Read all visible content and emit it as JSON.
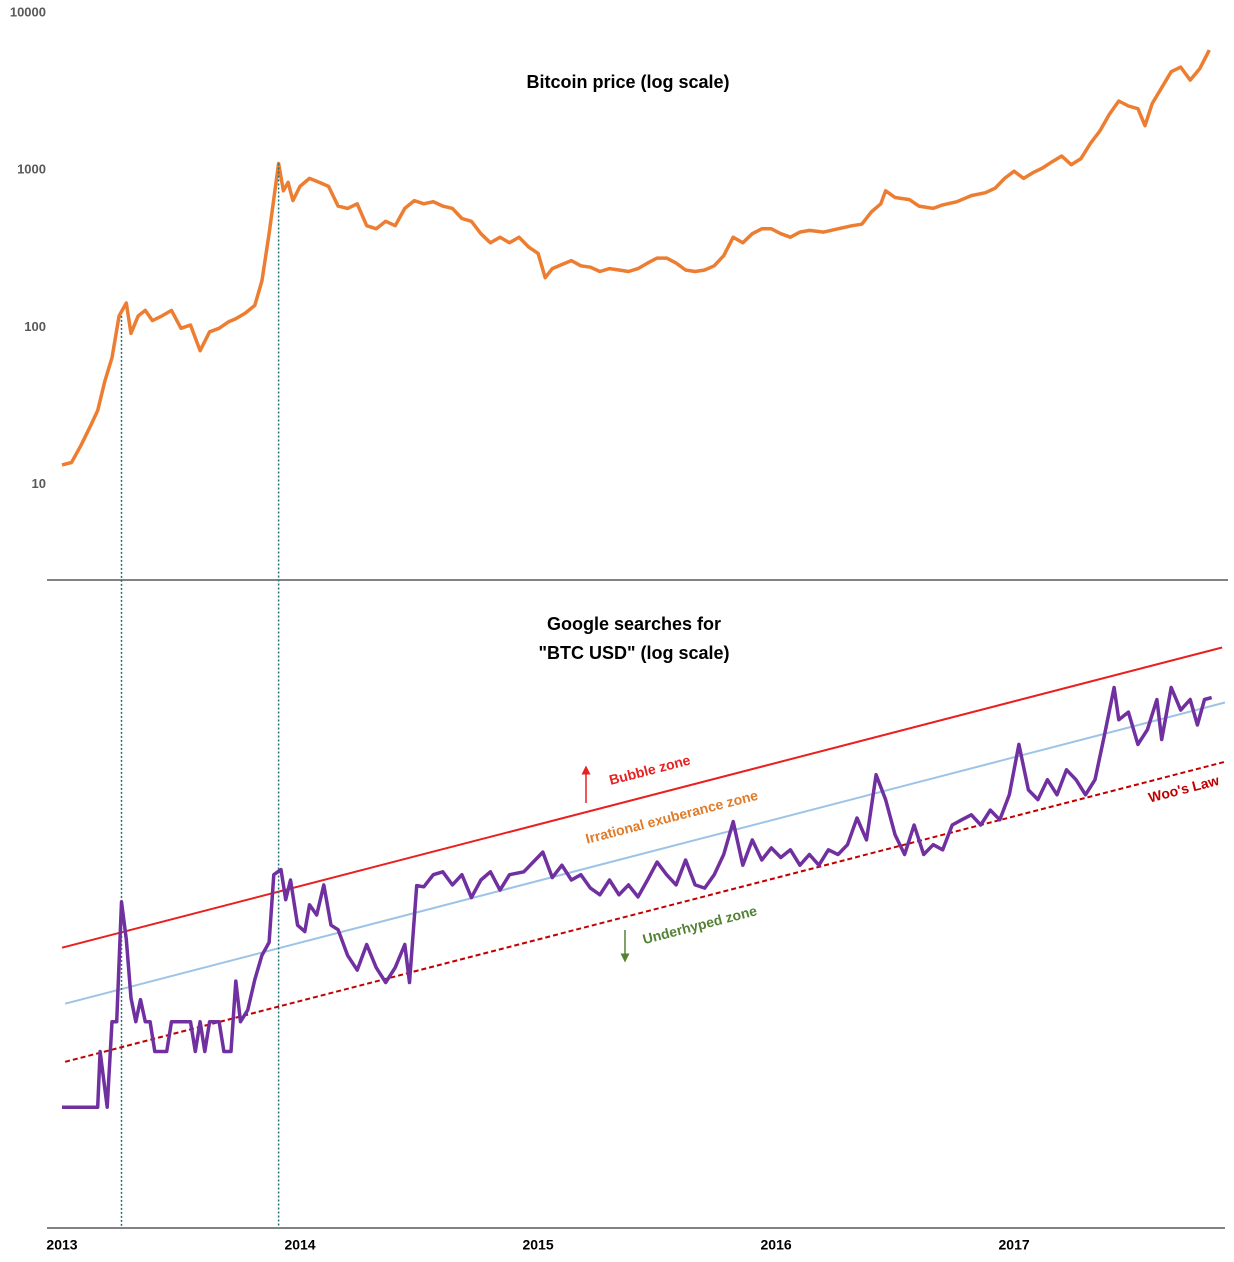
{
  "chart_data": [
    {
      "type": "line",
      "title": "Bitcoin price (log scale)",
      "log_scale": true,
      "xlim": [
        2012.937,
        2017.886
      ],
      "ylim": [
        2.5,
        12300
      ],
      "yticks": [
        10,
        100,
        1000,
        10000
      ],
      "x": [
        2013.0,
        2013.04,
        2013.08,
        2013.12,
        2013.15,
        2013.18,
        2013.21,
        2013.24,
        2013.27,
        2013.29,
        2013.32,
        2013.35,
        2013.38,
        2013.42,
        2013.46,
        2013.5,
        2013.54,
        2013.58,
        2013.62,
        2013.66,
        2013.7,
        2013.73,
        2013.77,
        2013.81,
        2013.84,
        2013.87,
        2013.91,
        2013.93,
        2013.95,
        2013.97,
        2014.0,
        2014.04,
        2014.08,
        2014.12,
        2014.16,
        2014.2,
        2014.24,
        2014.28,
        2014.32,
        2014.36,
        2014.4,
        2014.44,
        2014.48,
        2014.52,
        2014.56,
        2014.6,
        2014.64,
        2014.68,
        2014.72,
        2014.76,
        2014.8,
        2014.84,
        2014.88,
        2014.92,
        2014.96,
        2015.0,
        2015.03,
        2015.06,
        2015.1,
        2015.14,
        2015.18,
        2015.22,
        2015.26,
        2015.3,
        2015.34,
        2015.38,
        2015.42,
        2015.46,
        2015.5,
        2015.54,
        2015.58,
        2015.62,
        2015.66,
        2015.7,
        2015.74,
        2015.78,
        2015.82,
        2015.86,
        2015.9,
        2015.94,
        2015.98,
        2016.02,
        2016.06,
        2016.1,
        2016.14,
        2016.2,
        2016.26,
        2016.32,
        2016.36,
        2016.4,
        2016.44,
        2016.46,
        2016.5,
        2016.56,
        2016.6,
        2016.66,
        2016.7,
        2016.76,
        2016.82,
        2016.88,
        2016.92,
        2016.96,
        2017.0,
        2017.04,
        2017.08,
        2017.12,
        2017.16,
        2017.2,
        2017.24,
        2017.28,
        2017.32,
        2017.36,
        2017.4,
        2017.44,
        2017.48,
        2017.52,
        2017.55,
        2017.58,
        2017.62,
        2017.66,
        2017.7,
        2017.74,
        2017.78,
        2017.82
      ],
      "series": [
        {
          "color": "#ed7d31",
          "values": [
            13.5,
            14,
            18,
            24,
            30,
            46,
            65,
            120,
            145,
            93,
            120,
            130,
            112,
            120,
            130,
            100,
            105,
            72,
            95,
            100,
            110,
            115,
            125,
            140,
            200,
            400,
            1120,
            750,
            850,
            650,
            800,
            900,
            850,
            800,
            600,
            580,
            620,
            450,
            430,
            480,
            450,
            580,
            650,
            620,
            640,
            600,
            580,
            500,
            480,
            400,
            350,
            380,
            350,
            380,
            330,
            300,
            210,
            240,
            255,
            270,
            250,
            245,
            230,
            240,
            235,
            230,
            240,
            260,
            280,
            280,
            260,
            235,
            230,
            235,
            250,
            290,
            380,
            350,
            400,
            430,
            430,
            400,
            380,
            410,
            420,
            410,
            430,
            450,
            460,
            550,
            620,
            750,
            680,
            660,
            600,
            580,
            610,
            640,
            700,
            730,
            780,
            900,
            1000,
            900,
            980,
            1050,
            1150,
            1250,
            1100,
            1200,
            1500,
            1800,
            2300,
            2800,
            2600,
            2500,
            1950,
            2700,
            3400,
            4300,
            4600,
            3800,
            4500,
            5900
          ]
        }
      ]
    },
    {
      "type": "line",
      "title": [
        "Google searches for",
        "\"BTC USD\" (log scale)"
      ],
      "log_scale": true,
      "xlim": [
        2012.937,
        2017.886
      ],
      "ylim": [
        1,
        250
      ],
      "xticks": [
        2013,
        2014,
        2015,
        2016,
        2017
      ],
      "x": [
        2013.0,
        2013.15,
        2013.16,
        2013.19,
        2013.21,
        2013.23,
        2013.25,
        2013.27,
        2013.29,
        2013.31,
        2013.33,
        2013.35,
        2013.37,
        2013.39,
        2013.44,
        2013.46,
        2013.54,
        2013.56,
        2013.58,
        2013.6,
        2013.62,
        2013.66,
        2013.68,
        2013.71,
        2013.73,
        2013.75,
        2013.78,
        2013.81,
        2013.84,
        2013.87,
        2013.89,
        2013.92,
        2013.94,
        2013.96,
        2013.99,
        2014.02,
        2014.04,
        2014.07,
        2014.1,
        2014.13,
        2014.16,
        2014.2,
        2014.24,
        2014.28,
        2014.32,
        2014.36,
        2014.4,
        2014.44,
        2014.46,
        2014.49,
        2014.52,
        2014.56,
        2014.6,
        2014.64,
        2014.68,
        2014.72,
        2014.76,
        2014.8,
        2014.84,
        2014.88,
        2014.94,
        2015.02,
        2015.06,
        2015.1,
        2015.14,
        2015.18,
        2015.22,
        2015.26,
        2015.3,
        2015.34,
        2015.38,
        2015.42,
        2015.46,
        2015.5,
        2015.54,
        2015.58,
        2015.62,
        2015.66,
        2015.7,
        2015.74,
        2015.78,
        2015.82,
        2015.86,
        2015.9,
        2015.94,
        2015.98,
        2016.02,
        2016.06,
        2016.1,
        2016.14,
        2016.18,
        2016.22,
        2016.26,
        2016.3,
        2016.34,
        2016.38,
        2016.42,
        2016.46,
        2016.5,
        2016.54,
        2016.58,
        2016.62,
        2016.66,
        2016.7,
        2016.74,
        2016.78,
        2016.82,
        2016.86,
        2016.9,
        2016.94,
        2016.98,
        2017.02,
        2017.06,
        2017.1,
        2017.14,
        2017.18,
        2017.22,
        2017.26,
        2017.3,
        2017.34,
        2017.38,
        2017.42,
        2017.44,
        2017.48,
        2017.52,
        2017.56,
        2017.6,
        2017.62,
        2017.66,
        2017.7,
        2017.74,
        2017.77,
        2017.8,
        2017.83
      ],
      "series": [
        {
          "color": "#7030a0",
          "values": [
            2.8,
            2.8,
            4.5,
            2.8,
            5.8,
            5.8,
            16.1,
            11.7,
            7.1,
            5.8,
            7.0,
            5.8,
            5.8,
            4.5,
            4.5,
            5.8,
            5.8,
            4.5,
            5.8,
            4.5,
            5.8,
            5.8,
            4.5,
            4.5,
            8.2,
            5.8,
            6.4,
            8.3,
            10.2,
            11.4,
            20.3,
            21.2,
            16.4,
            19.4,
            13.2,
            12.5,
            15.7,
            14.4,
            18.6,
            13.2,
            12.7,
            10.2,
            9.0,
            11.2,
            9.2,
            8.1,
            9.2,
            11.2,
            8.1,
            18.5,
            18.3,
            20.3,
            20.8,
            18.6,
            20.3,
            16.7,
            19.4,
            20.8,
            17.8,
            20.3,
            20.8,
            24.6,
            19.8,
            22,
            19.4,
            20.3,
            18.1,
            17.1,
            19.4,
            17.1,
            18.6,
            16.8,
            19.4,
            22.6,
            20.3,
            18.6,
            23.0,
            18.6,
            18.1,
            20.3,
            24.1,
            31.9,
            22.0,
            27.3,
            23.0,
            25.5,
            23.5,
            25.1,
            22,
            24.1,
            22,
            25.1,
            24.1,
            26.2,
            32.9,
            27.3,
            47.6,
            38.5,
            28.5,
            24.1,
            31.0,
            24.1,
            26.2,
            25.1,
            31.0,
            32.4,
            33.8,
            31.0,
            35.2,
            32.4,
            40.1,
            61.6,
            41.8,
            38.5,
            45.6,
            40.1,
            49.6,
            45.6,
            40.1,
            45.6,
            67.1,
            100,
            76.0,
            81.1,
            61.6,
            69.8,
            90.3,
            64.2,
            100,
            82.5,
            90.3,
            72.7,
            90.3,
            91.8
          ]
        }
      ],
      "trend_lines": [
        {
          "color": "#e8201f",
          "dashed": false,
          "x": [
            2013.0,
            2017.874
          ],
          "values": [
            10.9,
            140.6
          ]
        },
        {
          "color": "#9dc3e6",
          "dashed": false,
          "x": [
            2013.013,
            2017.886
          ],
          "values": [
            6.76,
            88.0
          ]
        },
        {
          "color": "#c00000",
          "dashed": true,
          "x": [
            2013.013,
            2017.886
          ],
          "values": [
            4.12,
            53.1
          ]
        }
      ],
      "vlines": [
        2013.25,
        2013.91
      ],
      "vline_color": "#1f6f78",
      "annotations": [
        {
          "text": "Bubble zone",
          "color": "#e8201f"
        },
        {
          "text": "Irrational exuberance zone",
          "color": "#e07b2a"
        },
        {
          "text": "Underhyped zone",
          "color": "#548235"
        },
        {
          "text": "Woo's Law",
          "color": "#c00000"
        }
      ]
    }
  ]
}
